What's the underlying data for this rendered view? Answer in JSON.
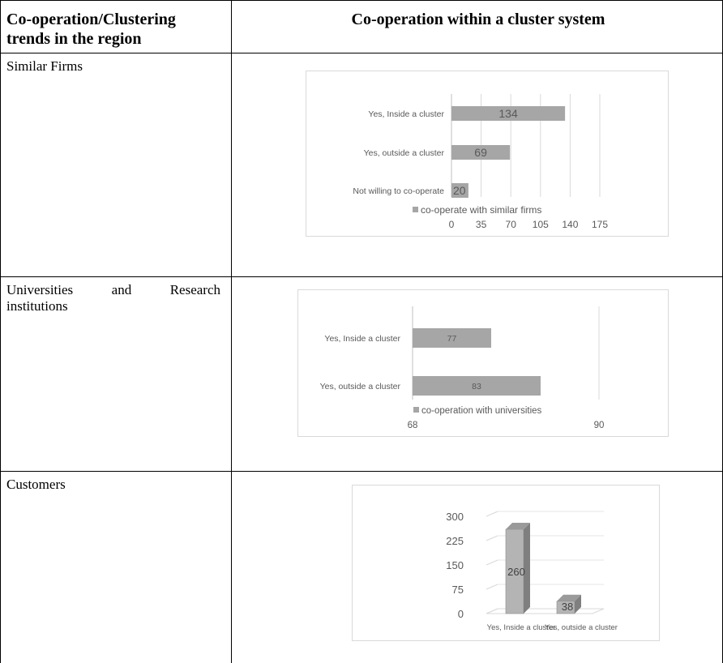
{
  "table": {
    "header_left": "Co-operation/Clustering trends in the region",
    "header_left_line1": "Co-operation/Clustering",
    "header_left_line2": "trends in the region",
    "header_right": "Co-operation within a cluster system",
    "rows": [
      {
        "label": "Similar Firms"
      },
      {
        "label_line1": "Universities and Research",
        "label_line2": "institutions",
        "label": "Universities and Research institutions"
      },
      {
        "label": "Customers"
      }
    ]
  },
  "chart_data": [
    {
      "type": "bar",
      "orientation": "horizontal",
      "categories": [
        "Yes, Inside a cluster",
        "Yes, outside a cluster",
        "Not willing to co-operate"
      ],
      "series": [
        {
          "name": "co-operate with similar firms",
          "values": [
            134,
            69,
            20
          ]
        }
      ],
      "xlim": [
        0,
        175
      ],
      "xticks": [
        "0",
        "35",
        "70",
        "105",
        "140",
        "175"
      ],
      "legend": "bottom",
      "bar_color": "#a6a6a6"
    },
    {
      "type": "bar",
      "orientation": "horizontal",
      "categories": [
        "Yes, Inside a cluster",
        "Yes, outside a cluster"
      ],
      "series": [
        {
          "name": "co-operation with universities",
          "values": [
            77,
            83
          ]
        }
      ],
      "xlim": [
        68,
        90
      ],
      "xticks": [
        "68",
        "90"
      ],
      "legend": "bottom",
      "bar_color": "#a6a6a6"
    },
    {
      "type": "bar",
      "orientation": "vertical-3d",
      "categories": [
        "Yes, Inside a cluster",
        "Yes, outside a cluster"
      ],
      "series": [
        {
          "values": [
            260,
            38
          ]
        }
      ],
      "ylim": [
        0,
        300
      ],
      "yticks": [
        "0",
        "75",
        "150",
        "225",
        "300"
      ],
      "bar_color": "#b4b4b4"
    }
  ]
}
